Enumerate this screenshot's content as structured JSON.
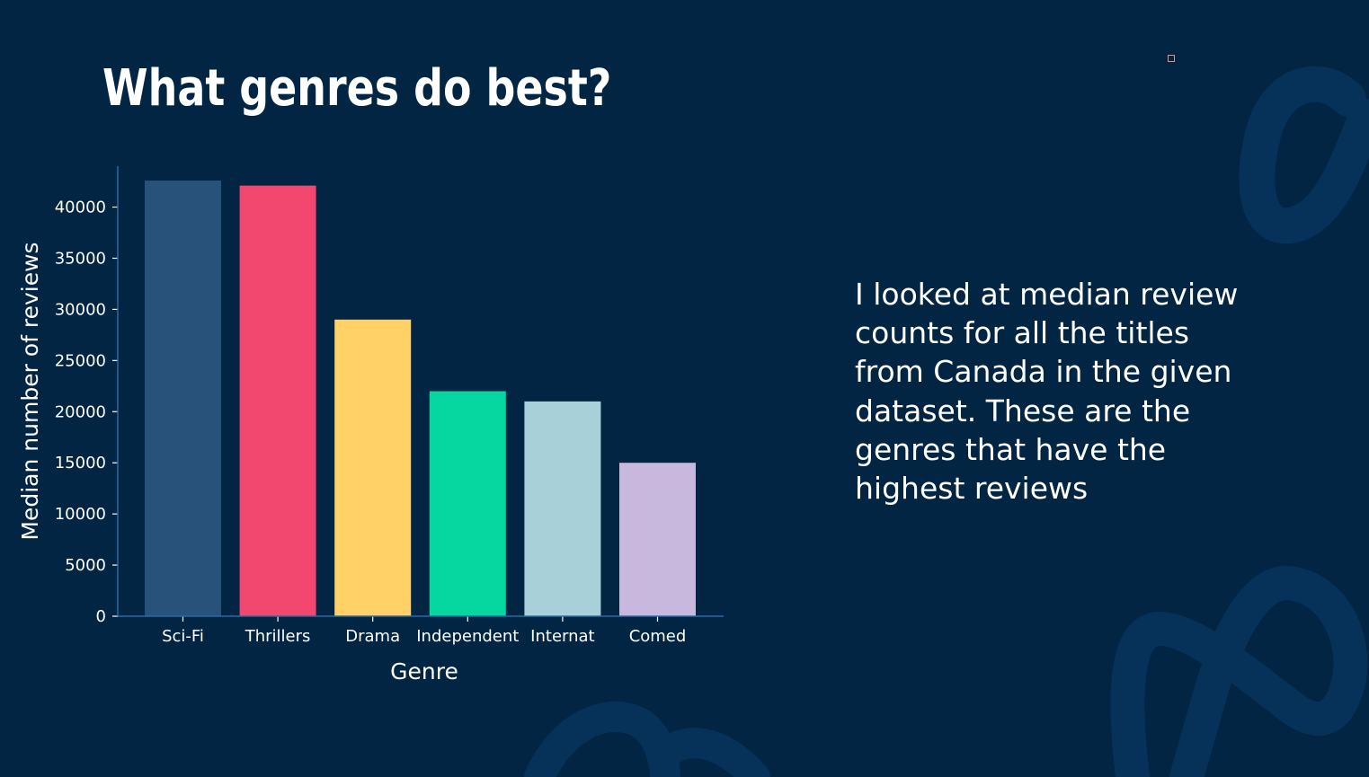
{
  "slide": {
    "title": "What genres do best?",
    "body": "I looked at median review counts for all the titles from Canada in the given dataset. These are the genres that have the highest reviews",
    "background_color": "#012543",
    "decoration_color": "#06325a",
    "marker_color": "#f08c7a"
  },
  "chart_data": {
    "type": "bar",
    "title": "",
    "xlabel": "Genre",
    "ylabel": "Median number of reviews",
    "categories": [
      "Sci-Fi",
      "Thrillers",
      "Drama",
      "Independent",
      "Internat",
      "Comed"
    ],
    "values": [
      42600,
      42100,
      29000,
      22000,
      21000,
      15000
    ],
    "colors": [
      "#28527a",
      "#f2476f",
      "#ffd166",
      "#06d6a0",
      "#a8d0d8",
      "#c9b8dd"
    ],
    "yticks": [
      0,
      5000,
      10000,
      15000,
      20000,
      25000,
      30000,
      35000,
      40000
    ],
    "ylim": [
      0,
      44000
    ],
    "grid": false,
    "axis_color": "#2b6aa8"
  }
}
